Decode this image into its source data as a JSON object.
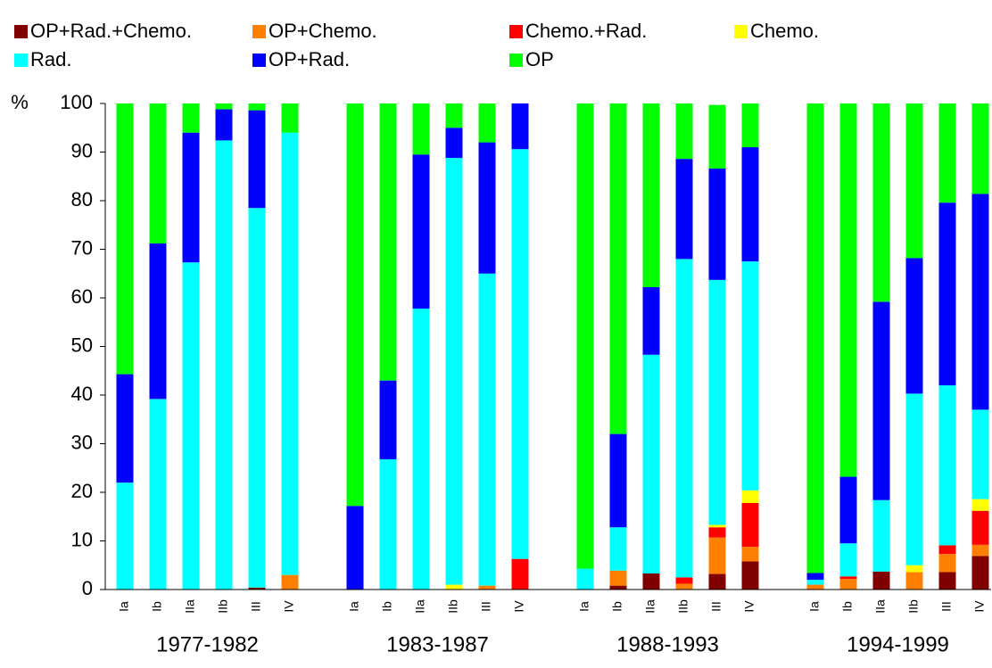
{
  "chart_data": {
    "type": "stacked_bar",
    "y_label": "%",
    "categories": [
      "Ia",
      "Ib",
      "IIa",
      "IIb",
      "III",
      "IV",
      "Ia",
      "Ib",
      "IIa",
      "IIb",
      "III",
      "IV",
      "Ia",
      "Ib",
      "IIa",
      "IIb",
      "III",
      "IV",
      "Ia",
      "Ib",
      "IIa",
      "IIb",
      "III",
      "IV"
    ],
    "group_labels": [
      "1977-1982",
      "1983-1987",
      "1988-1993",
      "1994-1999"
    ],
    "series": [
      {
        "name": "OP+Rad.+Chemo.",
        "color": "#800000",
        "values": [
          0,
          0,
          0,
          0,
          0.4,
          0,
          0,
          0,
          0,
          0,
          0,
          0,
          0,
          0.8,
          3.3,
          0,
          3.2,
          5.8,
          0,
          0,
          3.7,
          0,
          3.6,
          6.9
        ]
      },
      {
        "name": "OP+Chemo.",
        "color": "#ff8000",
        "values": [
          0,
          0,
          0,
          0,
          0,
          3,
          0,
          0,
          0,
          0,
          0.8,
          0,
          0,
          3.1,
          0,
          1.2,
          7.5,
          3,
          1,
          2.2,
          0,
          3.6,
          3.7,
          2.3
        ]
      },
      {
        "name": "Chemo.+Rad.",
        "color": "#ff0000",
        "values": [
          0,
          0,
          0,
          0,
          0,
          0,
          0,
          0,
          0,
          0,
          0,
          6.3,
          0,
          0,
          0,
          1.3,
          2.1,
          9,
          0,
          0.5,
          0,
          0,
          1.8,
          7
        ]
      },
      {
        "name": "Chemo.",
        "color": "#ffff00",
        "values": [
          0,
          0,
          0,
          0,
          0,
          0,
          0,
          0,
          0,
          1,
          0,
          0,
          0,
          0,
          0,
          0,
          0.5,
          2.6,
          0,
          0,
          0,
          1.4,
          0,
          2.4
        ]
      },
      {
        "name": "Rad.",
        "color": "#00ffff",
        "values": [
          22,
          39.2,
          67.3,
          92.4,
          78.1,
          91,
          0,
          26.8,
          57.8,
          87.8,
          64.2,
          84.3,
          4.3,
          8.9,
          45,
          65.5,
          50.4,
          47.1,
          1,
          6.8,
          14.7,
          35.3,
          32.9,
          18.4
        ]
      },
      {
        "name": "OP+Rad.",
        "color": "#0000ff",
        "values": [
          22.3,
          32,
          26.7,
          6.4,
          20.1,
          0,
          17.2,
          16.2,
          31.7,
          6.2,
          27,
          9.4,
          0,
          19.2,
          13.9,
          20.6,
          22.9,
          23.5,
          1.4,
          13.7,
          40.8,
          27.9,
          37.6,
          44.4
        ]
      },
      {
        "name": "OP",
        "color": "#00ff00",
        "values": [
          55.7,
          28.8,
          6,
          1.2,
          1.4,
          6,
          82.8,
          57,
          10.5,
          5,
          8,
          0,
          95.7,
          68,
          37.8,
          11.4,
          13.1,
          9,
          96.6,
          76.8,
          40.8,
          31.8,
          20.4,
          18.6
        ]
      }
    ],
    "ylim": [
      0,
      100
    ],
    "yticks": [
      0,
      10,
      20,
      30,
      40,
      50,
      60,
      70,
      80,
      90,
      100
    ],
    "grid": false
  }
}
